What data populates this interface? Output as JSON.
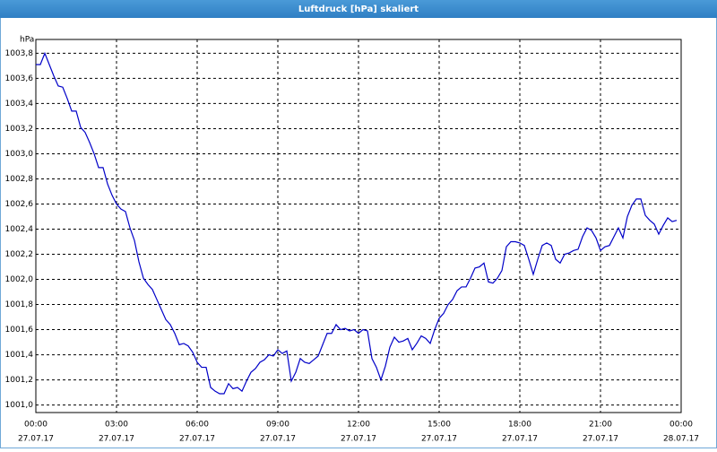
{
  "chart_data": {
    "type": "line",
    "title": "Luftdruck [hPa] skaliert",
    "y_label": "hPa",
    "x": [
      0,
      10,
      20,
      30,
      40,
      50,
      60,
      70,
      80,
      90,
      100,
      110,
      120,
      130,
      140,
      150,
      160,
      170,
      180,
      190,
      200,
      210,
      220,
      230,
      240,
      250,
      260,
      270,
      280,
      290,
      300,
      310,
      320,
      330,
      340,
      350,
      360,
      370,
      380,
      390,
      400,
      410,
      420,
      430,
      440,
      450,
      460,
      470,
      480,
      490,
      500,
      510,
      520,
      530,
      540,
      550,
      560,
      570,
      580,
      590,
      600,
      610,
      620,
      630,
      640,
      650,
      660,
      670,
      680,
      690,
      700,
      710,
      720,
      730,
      740,
      750,
      760,
      770,
      780,
      790,
      800,
      810,
      820,
      830,
      840,
      850,
      860,
      870,
      880,
      890,
      900,
      910,
      920,
      930,
      940,
      950,
      960,
      970,
      980,
      990,
      1000,
      1010,
      1020,
      1030,
      1040,
      1050,
      1060,
      1070,
      1080,
      1090,
      1100,
      1110,
      1120,
      1130,
      1140,
      1150,
      1160,
      1170,
      1180,
      1190,
      1200,
      1210,
      1220,
      1230,
      1240,
      1250,
      1260,
      1270,
      1280,
      1290,
      1300,
      1310,
      1320,
      1330,
      1340,
      1350,
      1360,
      1370,
      1380,
      1390,
      1400,
      1410,
      1420,
      1430
    ],
    "series": [
      {
        "color": "#0000c8",
        "values": [
          1003.71,
          1003.71,
          1003.8,
          1003.71,
          1003.62,
          1003.54,
          1003.53,
          1003.44,
          1003.34,
          1003.34,
          1003.21,
          1003.17,
          1003.09,
          1003.0,
          1002.89,
          1002.89,
          1002.76,
          1002.67,
          1002.6,
          1002.56,
          1002.54,
          1002.41,
          1002.31,
          1002.14,
          1002.01,
          1001.96,
          1001.92,
          1001.84,
          1001.76,
          1001.68,
          1001.64,
          1001.57,
          1001.48,
          1001.49,
          1001.47,
          1001.42,
          1001.34,
          1001.3,
          1001.3,
          1001.14,
          1001.11,
          1001.09,
          1001.09,
          1001.17,
          1001.13,
          1001.14,
          1001.11,
          1001.19,
          1001.26,
          1001.29,
          1001.34,
          1001.36,
          1001.4,
          1001.39,
          1001.44,
          1001.41,
          1001.43,
          1001.19,
          1001.26,
          1001.37,
          1001.34,
          1001.33,
          1001.36,
          1001.39,
          1001.48,
          1001.57,
          1001.57,
          1001.64,
          1001.6,
          1001.61,
          1001.59,
          1001.6,
          1001.57,
          1001.6,
          1001.59,
          1001.37,
          1001.3,
          1001.2,
          1001.31,
          1001.46,
          1001.54,
          1001.5,
          1001.51,
          1001.53,
          1001.44,
          1001.49,
          1001.55,
          1001.53,
          1001.49,
          1001.6,
          1001.69,
          1001.73,
          1001.8,
          1001.84,
          1001.91,
          1001.94,
          1001.94,
          1002.01,
          1002.09,
          1002.1,
          1002.13,
          1001.98,
          1001.97,
          1002.01,
          1002.07,
          1002.26,
          1002.3,
          1002.3,
          1002.29,
          1002.27,
          1002.16,
          1002.04,
          1002.16,
          1002.27,
          1002.29,
          1002.27,
          1002.16,
          1002.13,
          1002.2,
          1002.21,
          1002.23,
          1002.24,
          1002.34,
          1002.41,
          1002.39,
          1002.33,
          1002.23,
          1002.26,
          1002.27,
          1002.34,
          1002.41,
          1002.33,
          1002.5,
          1002.59,
          1002.64,
          1002.64,
          1002.51,
          1002.47,
          1002.44,
          1002.36,
          1002.43,
          1002.49,
          1002.46,
          1002.47
        ]
      }
    ],
    "xlim": [
      0,
      1440
    ],
    "xticks": [
      {
        "value": 0,
        "label": "00:00"
      },
      {
        "value": 180,
        "label": "03:00"
      },
      {
        "value": 360,
        "label": "06:00"
      },
      {
        "value": 540,
        "label": "09:00"
      },
      {
        "value": 720,
        "label": "12:00"
      },
      {
        "value": 900,
        "label": "15:00"
      },
      {
        "value": 1080,
        "label": "18:00"
      },
      {
        "value": 1260,
        "label": "21:00"
      },
      {
        "value": 1440,
        "label": "00:00"
      }
    ],
    "xtick_dates": [
      "27.07.17",
      "27.07.17",
      "27.07.17",
      "27.07.17",
      "27.07.17",
      "27.07.17",
      "27.07.17",
      "27.07.17",
      "28.07.17"
    ],
    "ylim": [
      1000.94,
      1003.91
    ],
    "yticks": [
      {
        "value": 1001.0,
        "label": "1001,0"
      },
      {
        "value": 1001.2,
        "label": "1001,2"
      },
      {
        "value": 1001.4,
        "label": "1001,4"
      },
      {
        "value": 1001.6,
        "label": "1001,6"
      },
      {
        "value": 1001.8,
        "label": "1001,8"
      },
      {
        "value": 1002.0,
        "label": "1002,0"
      },
      {
        "value": 1002.2,
        "label": "1002,2"
      },
      {
        "value": 1002.4,
        "label": "1002,4"
      },
      {
        "value": 1002.6,
        "label": "1002,6"
      },
      {
        "value": 1002.8,
        "label": "1002,8"
      },
      {
        "value": 1003.0,
        "label": "1003,0"
      },
      {
        "value": 1003.2,
        "label": "1003,2"
      },
      {
        "value": 1003.4,
        "label": "1003,4"
      },
      {
        "value": 1003.6,
        "label": "1003,6"
      },
      {
        "value": 1003.8,
        "label": "1003,8"
      }
    ],
    "grid": true
  }
}
